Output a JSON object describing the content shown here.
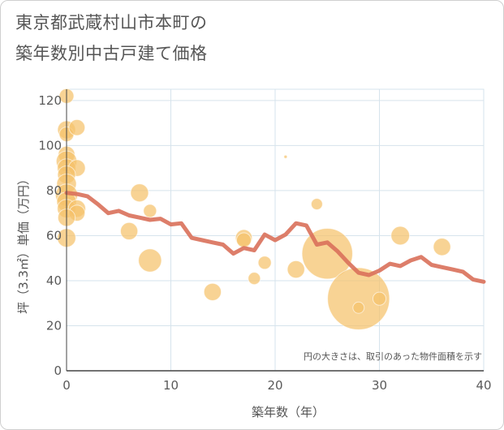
{
  "title_line1": "東京都武蔵村山市本町の",
  "title_line2": "築年数別中古戸建て価格",
  "chart_data": {
    "type": "scatter",
    "title": "東京都武蔵村山市本町の築年数別中古戸建て価格",
    "xlabel": "築年数（年）",
    "ylabel": "坪（3.3㎡）単価（万円）",
    "xlim": [
      0,
      40
    ],
    "ylim": [
      0,
      125
    ],
    "xticks": [
      0,
      10,
      20,
      30,
      40
    ],
    "yticks": [
      0,
      20,
      40,
      60,
      80,
      100,
      120
    ],
    "grid": true,
    "note": "円の大きさは、取引のあった物件面積を示す",
    "colors": {
      "bubble": "#f5c26b",
      "trend": "#d9705a",
      "grid": "#d6e3ec"
    },
    "bubbles": [
      {
        "x": 0,
        "y": 122,
        "size": 1
      },
      {
        "x": 0,
        "y": 107,
        "size": 1.5
      },
      {
        "x": 0,
        "y": 105,
        "size": 1
      },
      {
        "x": 1,
        "y": 108,
        "size": 1.2
      },
      {
        "x": 0,
        "y": 96,
        "size": 1.3
      },
      {
        "x": 0,
        "y": 93,
        "size": 2
      },
      {
        "x": 0,
        "y": 90,
        "size": 1.6
      },
      {
        "x": 1,
        "y": 90,
        "size": 1.3
      },
      {
        "x": 0,
        "y": 87,
        "size": 1.5
      },
      {
        "x": 0,
        "y": 83,
        "size": 1.8
      },
      {
        "x": 0,
        "y": 78,
        "size": 2.3
      },
      {
        "x": 0,
        "y": 75,
        "size": 1.8
      },
      {
        "x": 0,
        "y": 72,
        "size": 1.6
      },
      {
        "x": 1,
        "y": 72,
        "size": 1.4
      },
      {
        "x": 1,
        "y": 70,
        "size": 1.2
      },
      {
        "x": 0,
        "y": 68,
        "size": 1.4
      },
      {
        "x": 0,
        "y": 59,
        "size": 1.6
      },
      {
        "x": 7,
        "y": 79,
        "size": 1.5
      },
      {
        "x": 8,
        "y": 71,
        "size": 0.8
      },
      {
        "x": 6,
        "y": 62,
        "size": 1.4
      },
      {
        "x": 8,
        "y": 49,
        "size": 2.5
      },
      {
        "x": 14,
        "y": 35,
        "size": 1.4
      },
      {
        "x": 17,
        "y": 59,
        "size": 1.3
      },
      {
        "x": 17,
        "y": 58,
        "size": 1
      },
      {
        "x": 18,
        "y": 41,
        "size": 0.7
      },
      {
        "x": 19,
        "y": 48,
        "size": 0.8
      },
      {
        "x": 21,
        "y": 95,
        "size": 0.05
      },
      {
        "x": 22,
        "y": 45,
        "size": 1.4
      },
      {
        "x": 24,
        "y": 74,
        "size": 0.6
      },
      {
        "x": 25,
        "y": 52,
        "size": 12
      },
      {
        "x": 28,
        "y": 32,
        "size": 18
      },
      {
        "x": 28,
        "y": 28,
        "size": 0.6
      },
      {
        "x": 30,
        "y": 32,
        "size": 0.8
      },
      {
        "x": 32,
        "y": 60,
        "size": 1.6
      },
      {
        "x": 36,
        "y": 55,
        "size": 1.4
      }
    ],
    "trend": {
      "x": [
        0,
        1,
        2,
        3,
        4,
        5,
        6,
        7,
        8,
        9,
        10,
        11,
        12,
        13,
        14,
        15,
        16,
        17,
        18,
        19,
        20,
        21,
        22,
        23,
        24,
        25,
        26,
        27,
        28,
        29,
        30,
        31,
        32,
        33,
        34,
        35,
        36,
        37,
        38,
        39,
        40
      ],
      "y": [
        79,
        78.5,
        77.5,
        74,
        70,
        71,
        69,
        68,
        67,
        67.5,
        65,
        65.5,
        59,
        58,
        57,
        56,
        52,
        54.5,
        53.5,
        60.5,
        58,
        60.5,
        65.5,
        64.5,
        56,
        57,
        53,
        48,
        43.5,
        42.5,
        44.5,
        47.5,
        46.5,
        49,
        50.5,
        47,
        46,
        45,
        44,
        40.5,
        39.5
      ]
    }
  }
}
